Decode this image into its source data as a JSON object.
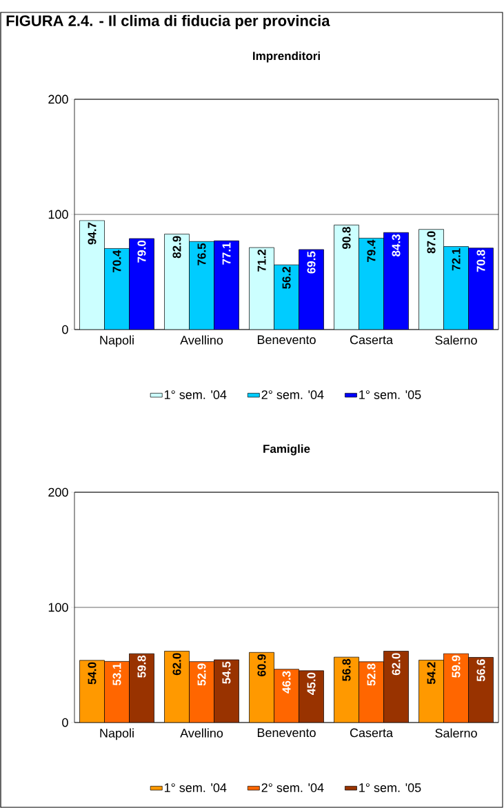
{
  "chart_data": [
    {
      "type": "bar",
      "title": "Imprenditori",
      "annotations": [
        "FIGURA 2.4. - Il clima di fiducia per provincia"
      ],
      "categories": [
        "Napoli",
        "Avellino",
        "Benevento",
        "Caserta",
        "Salerno"
      ],
      "series": [
        {
          "name": "1° sem. '04",
          "color": "#ccffff",
          "values": [
            94.7,
            82.9,
            71.2,
            90.8,
            87.0
          ],
          "value_labels": [
            "94.7",
            "82.9",
            "71.2",
            "90.8",
            "87.0"
          ]
        },
        {
          "name": "2° sem. '04",
          "color": "#00ccff",
          "values": [
            70.4,
            76.5,
            56.2,
            79.4,
            72.1
          ],
          "value_labels": [
            "70.4",
            "76.5",
            "56.2",
            "79.4",
            "72.1"
          ]
        },
        {
          "name": "1° sem. '05",
          "color": "#0000ff",
          "values": [
            79.0,
            77.1,
            69.5,
            84.3,
            70.8
          ],
          "value_labels": [
            "79.0",
            "77.1",
            "69.5",
            "84.3",
            "70.8"
          ]
        }
      ],
      "ylim": [
        0,
        200
      ],
      "yticks": [
        0,
        100,
        200
      ],
      "grid": "y",
      "legend": "bottom"
    },
    {
      "type": "bar",
      "title": "Famiglie",
      "categories": [
        "Napoli",
        "Avellino",
        "Benevento",
        "Caserta",
        "Salerno"
      ],
      "series": [
        {
          "name": "1° sem. '04",
          "color": "#ff9900",
          "values": [
            54.0,
            62.0,
            60.9,
            56.8,
            54.2
          ],
          "value_labels": [
            "54.0",
            "62.0",
            "60.9",
            "56.8",
            "54.2"
          ]
        },
        {
          "name": "2° sem. '04",
          "color": "#ff6600",
          "values": [
            53.1,
            52.9,
            46.3,
            52.8,
            59.9
          ],
          "value_labels": [
            "53.1",
            "52.9",
            "46.3",
            "52.8",
            "59.9"
          ]
        },
        {
          "name": "1° sem. '05",
          "color": "#993300",
          "values": [
            59.8,
            54.5,
            45.0,
            62.0,
            56.6
          ],
          "value_labels": [
            "59.8",
            "54.5",
            "45.0",
            "62.0",
            "56.6"
          ]
        }
      ],
      "ylim": [
        0,
        200
      ],
      "yticks": [
        0,
        100,
        200
      ],
      "grid": "y",
      "legend": "bottom"
    }
  ]
}
